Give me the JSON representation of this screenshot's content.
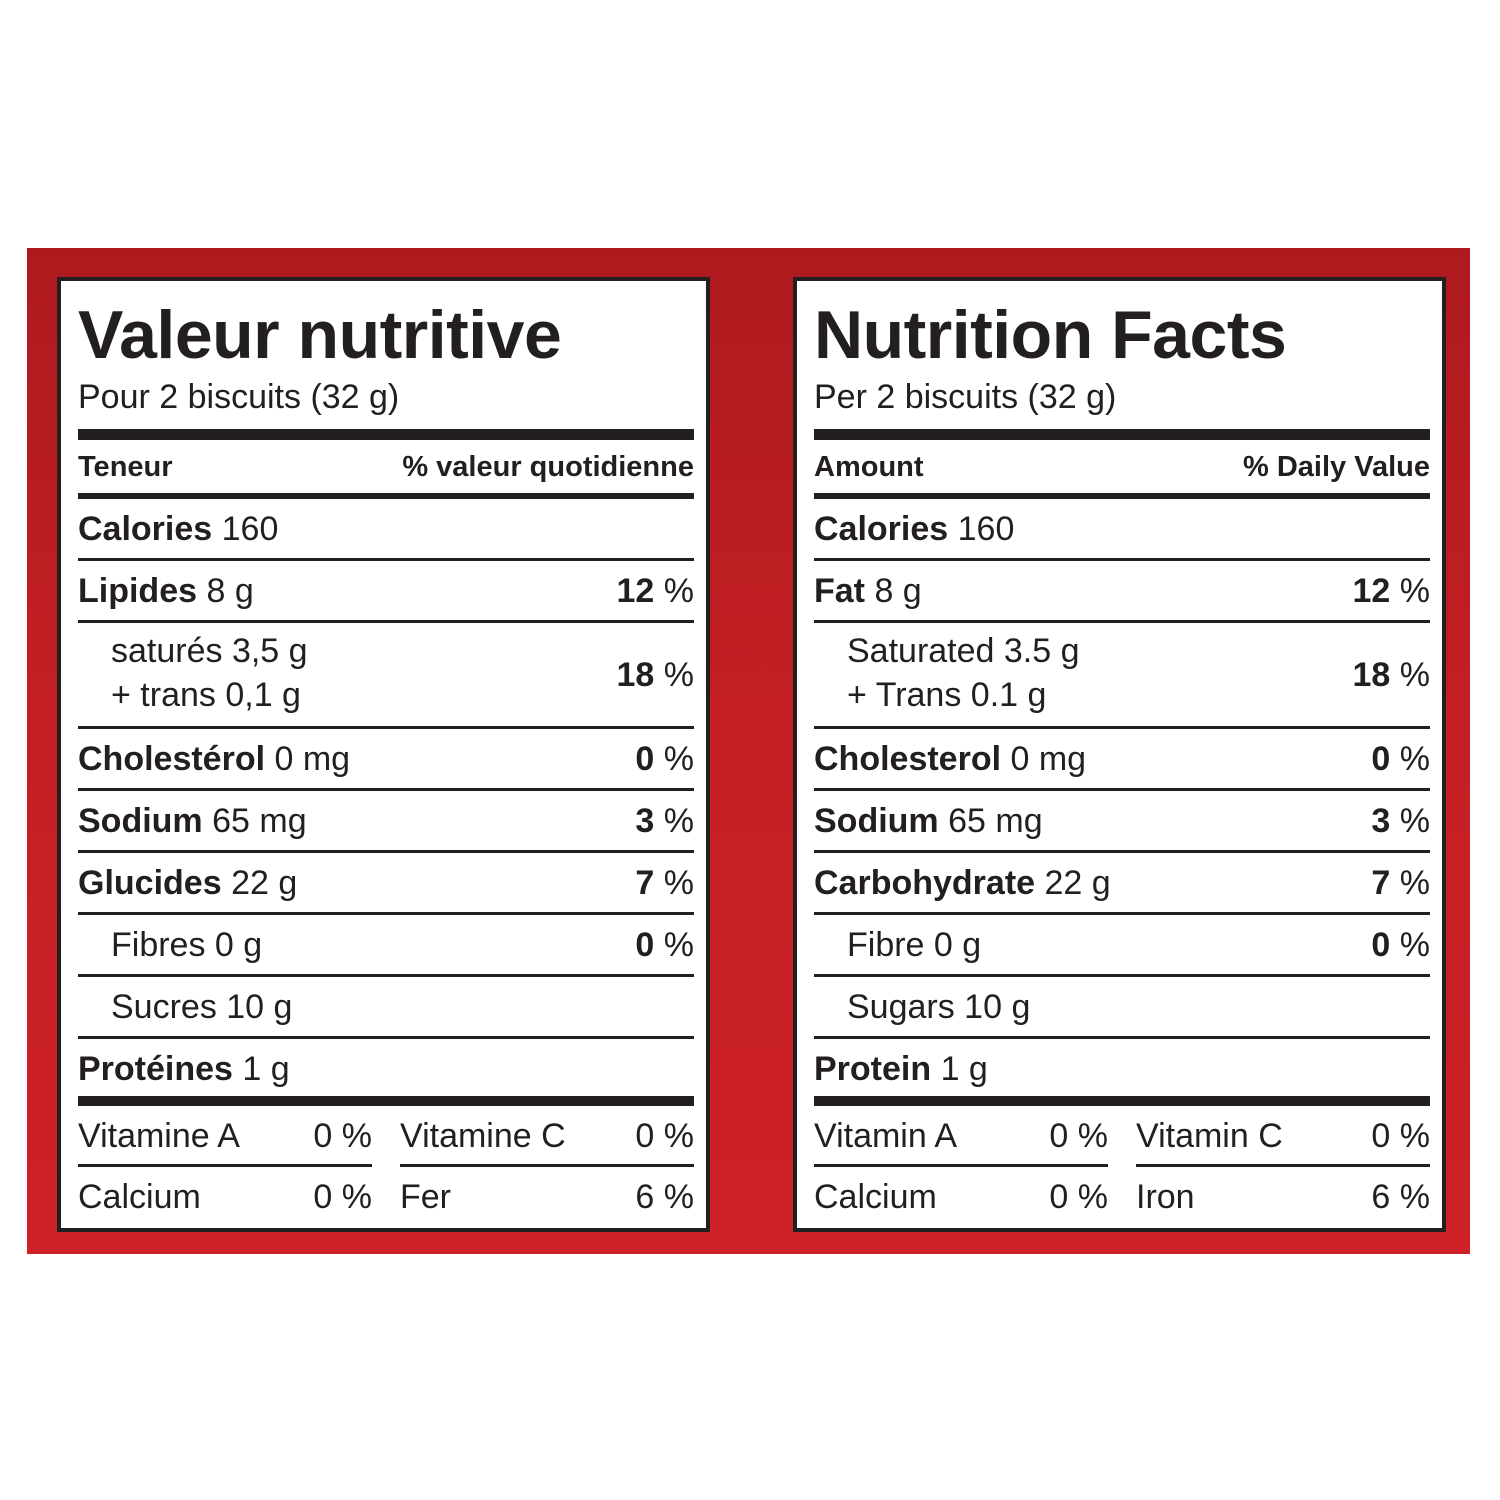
{
  "french": {
    "title": "Valeur nutritive",
    "serving": "Pour 2 biscuits (32 g)",
    "header_left": "Teneur",
    "header_right": "% valeur quotidienne",
    "calories": {
      "label": "Calories",
      "amount": "160"
    },
    "fat": {
      "label": "Lipides",
      "amount": "8 g",
      "dv_num": "12",
      "dv_unit": "%"
    },
    "saturated": {
      "text": "saturés 3,5 g",
      "trans": "+ trans 0,1 g",
      "dv_num": "18",
      "dv_unit": "%"
    },
    "cholesterol": {
      "label": "Cholestérol",
      "amount": "0 mg",
      "dv_num": "0",
      "dv_unit": "%"
    },
    "sodium": {
      "label": "Sodium",
      "amount": "65 mg",
      "dv_num": "3",
      "dv_unit": "%"
    },
    "carbohydrate": {
      "label": "Glucides",
      "amount": "22 g",
      "dv_num": "7",
      "dv_unit": "%"
    },
    "fibre": {
      "text": "Fibres 0 g",
      "dv_num": "0",
      "dv_unit": "%"
    },
    "sugars": {
      "text": "Sucres 10 g"
    },
    "protein": {
      "label": "Protéines",
      "amount": "1 g"
    },
    "vitamin_a": {
      "label": "Vitamine A",
      "value": "0 %"
    },
    "vitamin_c": {
      "label": "Vitamine C",
      "value": "0 %"
    },
    "calcium": {
      "label": "Calcium",
      "value": "0 %"
    },
    "iron": {
      "label": "Fer",
      "value": "6 %"
    }
  },
  "english": {
    "title": "Nutrition Facts",
    "serving": "Per 2 biscuits (32 g)",
    "header_left": "Amount",
    "header_right": "% Daily Value",
    "calories": {
      "label": "Calories",
      "amount": "160"
    },
    "fat": {
      "label": "Fat",
      "amount": "8 g",
      "dv_num": "12",
      "dv_unit": "%"
    },
    "saturated": {
      "text": "Saturated 3.5 g",
      "trans": "+ Trans 0.1 g",
      "dv_num": "18",
      "dv_unit": "%"
    },
    "cholesterol": {
      "label": "Cholesterol",
      "amount": "0 mg",
      "dv_num": "0",
      "dv_unit": "%"
    },
    "sodium": {
      "label": "Sodium",
      "amount": "65 mg",
      "dv_num": "3",
      "dv_unit": "%"
    },
    "carbohydrate": {
      "label": "Carbohydrate",
      "amount": "22 g",
      "dv_num": "7",
      "dv_unit": "%"
    },
    "fibre": {
      "text": "Fibre 0 g",
      "dv_num": "0",
      "dv_unit": "%"
    },
    "sugars": {
      "text": "Sugars 10 g"
    },
    "protein": {
      "label": "Protein",
      "amount": "1 g"
    },
    "vitamin_a": {
      "label": "Vitamin A",
      "value": "0 %"
    },
    "vitamin_c": {
      "label": "Vitamin C",
      "value": "0 %"
    },
    "calcium": {
      "label": "Calcium",
      "value": "0 %"
    },
    "iron": {
      "label": "Iron",
      "value": "6 %"
    }
  },
  "colors": {
    "band": "#c31f24",
    "ink": "#231f20",
    "panel": "#ffffff"
  }
}
